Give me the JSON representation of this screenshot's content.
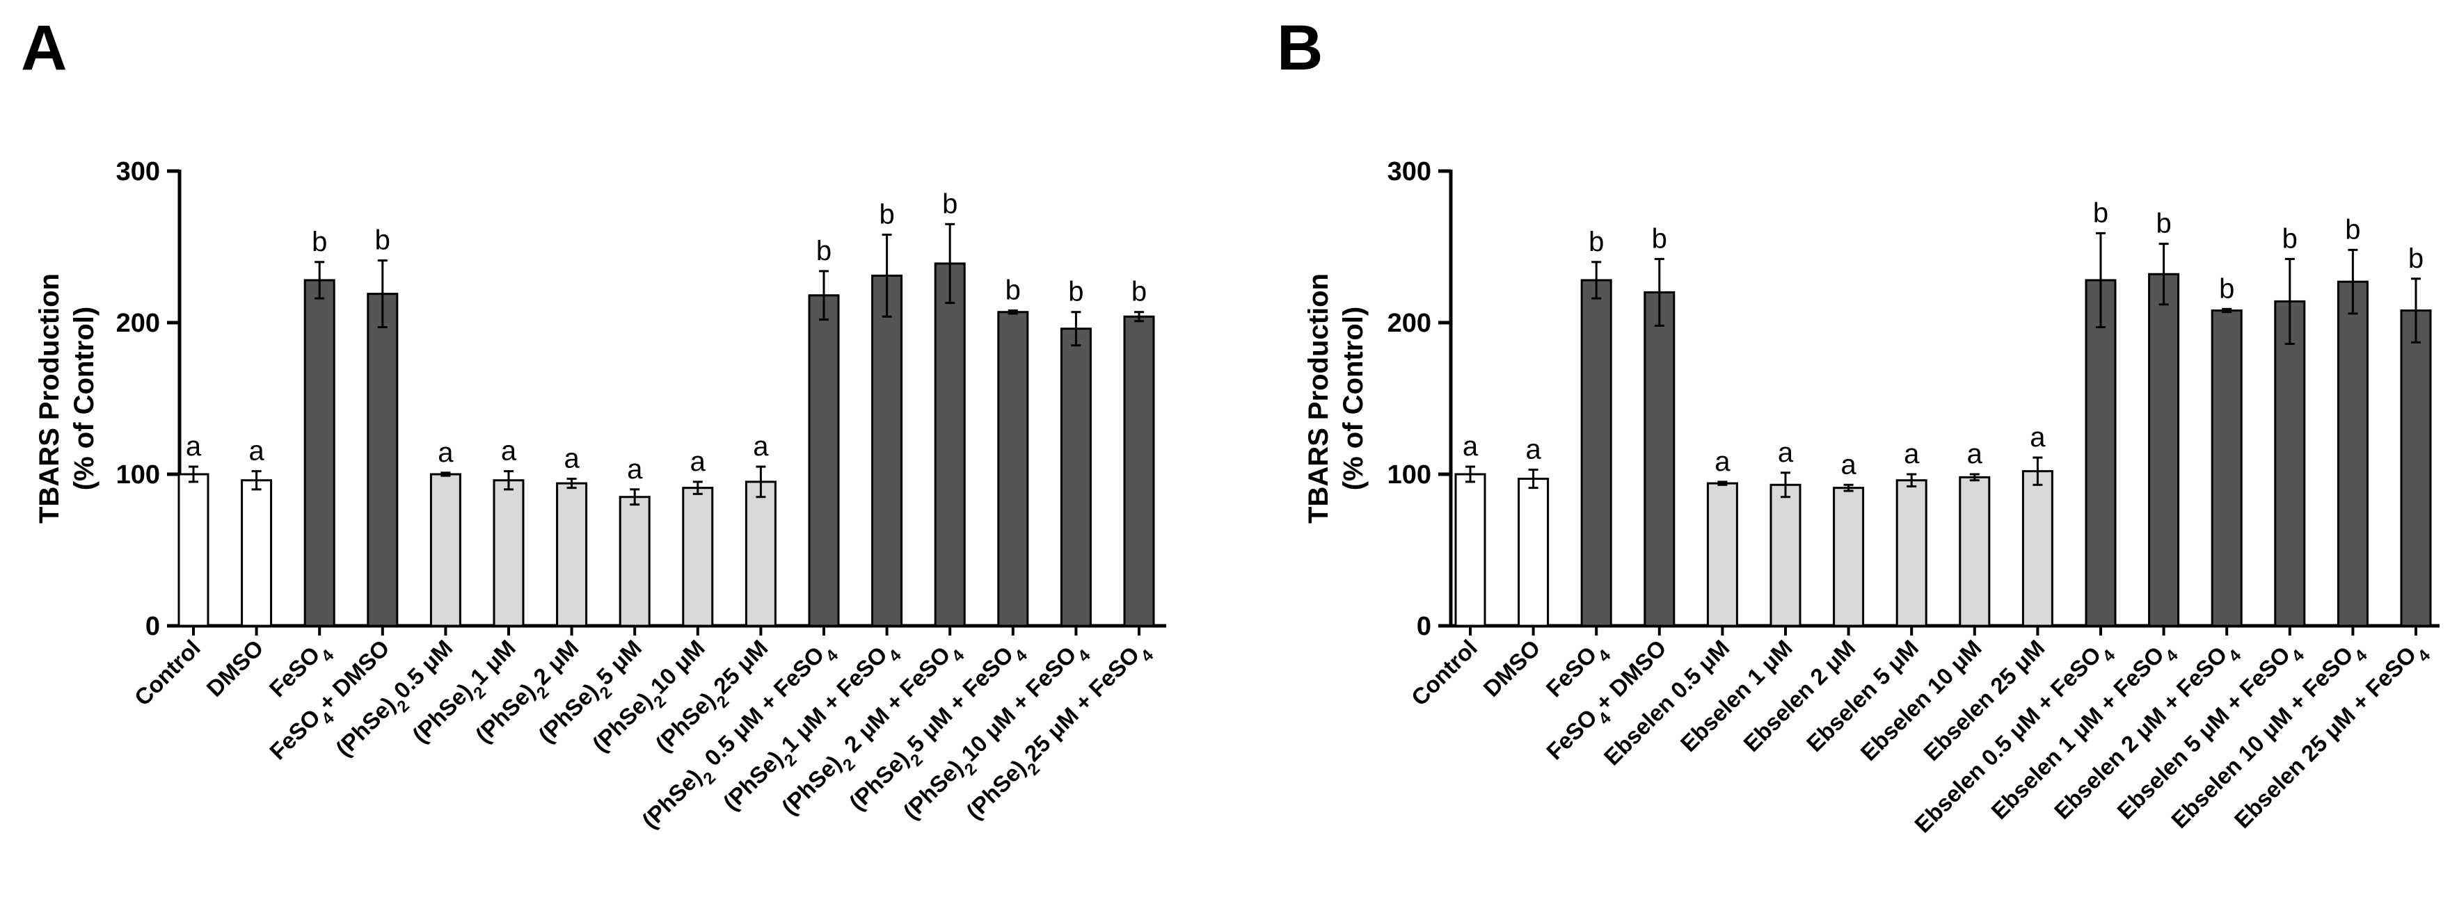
{
  "chart_data": [
    {
      "type": "bar",
      "panel_label": "A",
      "ylabel_line1": "TBARS Production",
      "ylabel_line2": "(% of Control)",
      "ylim": [
        0,
        300
      ],
      "yticks": [
        "0",
        "100",
        "200",
        "300"
      ],
      "categories": [
        {
          "pre": "Control"
        },
        {
          "pre": "DMSO"
        },
        {
          "pre": "FeSO",
          "sub": "4"
        },
        {
          "pre": "FeSO",
          "sub": "4",
          "post": "+ DMSO"
        },
        {
          "pre": "(PhSe)",
          "sub": "2",
          "post": "0.5 μM"
        },
        {
          "pre": "(PhSe)",
          "sub": "2",
          "post": "1 μM"
        },
        {
          "pre": "(PhSe)",
          "sub": "2",
          "post": "2 μM"
        },
        {
          "pre": "(PhSe)",
          "sub": "2",
          "post": "5 μM"
        },
        {
          "pre": "(PhSe)",
          "sub": "2",
          "post": "10 μM"
        },
        {
          "pre": "(PhSe)",
          "sub": "2",
          "post": "25 μM"
        },
        {
          "pre": "(PhSe)",
          "sub": "2",
          "post": " 0.5 μM + FeSO",
          "sub2": "4"
        },
        {
          "pre": "(PhSe)",
          "sub": "2",
          "post": "1 μM + FeSO",
          "sub2": "4"
        },
        {
          "pre": "(PhSe)",
          "sub": "2",
          "post": " 2 μM + FeSO",
          "sub2": "4"
        },
        {
          "pre": "(PhSe)",
          "sub": "2",
          "post": "5 μM + FeSO",
          "sub2": "4"
        },
        {
          "pre": "(PhSe)",
          "sub": "2",
          "post": "10 μM + FeSO",
          "sub2": "4"
        },
        {
          "pre": "(PhSe)",
          "sub": "2",
          "post": "25 μM + FeSO",
          "sub2": "4"
        }
      ],
      "values": [
        100,
        96,
        228,
        219,
        100,
        96,
        94,
        85,
        91,
        95,
        218,
        231,
        239,
        207,
        196,
        204
      ],
      "errors": [
        5,
        6,
        12,
        22,
        1,
        6,
        3,
        5,
        4,
        10,
        16,
        27,
        26,
        1,
        11,
        3
      ],
      "significance": [
        "a",
        "a",
        "b",
        "b",
        "a",
        "a",
        "a",
        "a",
        "a",
        "a",
        "b",
        "b",
        "b",
        "b",
        "b",
        "b"
      ],
      "fill_groups": [
        "white",
        "white",
        "dark",
        "dark",
        "light",
        "light",
        "light",
        "light",
        "light",
        "light",
        "dark",
        "dark",
        "dark",
        "dark",
        "dark",
        "dark"
      ]
    },
    {
      "type": "bar",
      "panel_label": "B",
      "ylabel_line1": "TBARS Production",
      "ylabel_line2": "(% of Control)",
      "ylim": [
        0,
        300
      ],
      "yticks": [
        "0",
        "100",
        "200",
        "300"
      ],
      "categories": [
        {
          "pre": "Control"
        },
        {
          "pre": "DMSO"
        },
        {
          "pre": "FeSO",
          "sub": "4"
        },
        {
          "pre": "FeSO",
          "sub": "4",
          "post": "+ DMSO"
        },
        {
          "pre": "Ebselen 0.5 μM"
        },
        {
          "pre": "Ebselen 1 μM"
        },
        {
          "pre": "Ebselen 2 μM"
        },
        {
          "pre": "Ebselen 5 μM"
        },
        {
          "pre": "Ebselen 10 μM"
        },
        {
          "pre": "Ebselen 25 μM"
        },
        {
          "pre": "Ebselen 0.5 μM + FeSO",
          "sub": "4"
        },
        {
          "pre": "Ebselen 1 μM + FeSO",
          "sub": "4"
        },
        {
          "pre": "Ebselen 2 μM + FeSO",
          "sub": "4"
        },
        {
          "pre": "Ebselen 5 μM + FeSO",
          "sub": "4"
        },
        {
          "pre": "Ebselen 10 μM + FeSO",
          "sub": "4"
        },
        {
          "pre": "Ebselen 25 μM + FeSO",
          "sub": "4"
        }
      ],
      "values": [
        100,
        97,
        228,
        220,
        94,
        93,
        91,
        96,
        98,
        102,
        228,
        232,
        208,
        214,
        227,
        208
      ],
      "errors": [
        5,
        6,
        12,
        22,
        1,
        8,
        2,
        4,
        2,
        9,
        31,
        20,
        1,
        28,
        21,
        21
      ],
      "significance": [
        "a",
        "a",
        "b",
        "b",
        "a",
        "a",
        "a",
        "a",
        "a",
        "a",
        "b",
        "b",
        "b",
        "b",
        "b",
        "b"
      ],
      "fill_groups": [
        "white",
        "white",
        "dark",
        "dark",
        "light",
        "light",
        "light",
        "light",
        "light",
        "light",
        "dark",
        "dark",
        "dark",
        "dark",
        "dark",
        "dark"
      ]
    }
  ],
  "colors": {
    "white": "#ffffff",
    "light": "#d9d9d9",
    "dark": "#555555",
    "stroke": "#000000"
  }
}
